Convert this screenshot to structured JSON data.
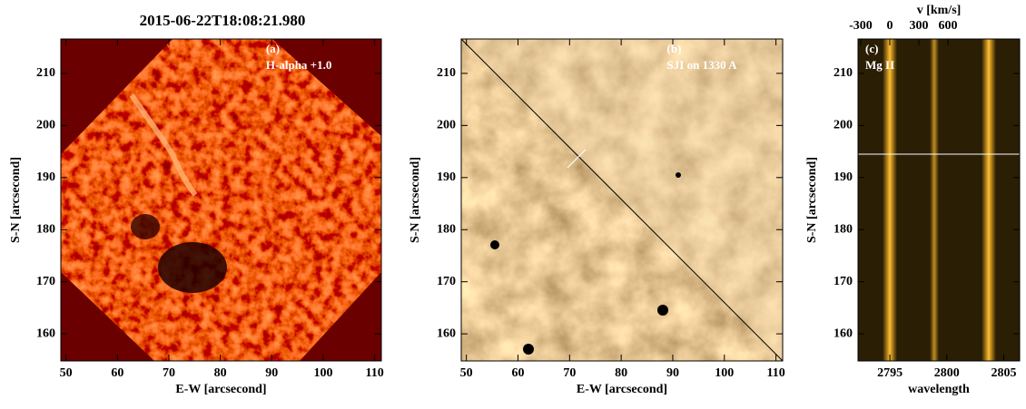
{
  "chart_data": [
    {
      "type": "image",
      "title": "2015-06-22T18:08:21.980",
      "annotations": [
        "(a)",
        "H-alpha +1.0"
      ],
      "xlabel": "E-W [arcsecond]",
      "ylabel": "S-N [arcsecond]",
      "xlim": [
        49,
        111.3
      ],
      "xticks": [
        50,
        60,
        70,
        80,
        90,
        100,
        110
      ],
      "ylim": [
        154.8,
        216.6
      ],
      "yticks": [
        160,
        170,
        180,
        190,
        200,
        210
      ]
    },
    {
      "type": "image",
      "annotations": [
        "(b)",
        "SJI on 1330 A"
      ],
      "xlabel": "E-W [arcsecond]",
      "ylabel": "S-N [arcsecond]",
      "xlim": [
        49,
        111.3
      ],
      "xticks": [
        50,
        60,
        70,
        80,
        90,
        100,
        110
      ],
      "ylim": [
        154.8,
        216.6
      ],
      "yticks": [
        160,
        170,
        180,
        190,
        200,
        210
      ]
    },
    {
      "type": "image",
      "annotations": [
        "(c)",
        "Mg II"
      ],
      "xlabel": "wavelength",
      "ylabel": "S-N [arcsecond]",
      "x2label": "v [km/s]",
      "xlim": [
        2792.2,
        2806.4
      ],
      "xticks": [
        2795,
        2800,
        2805
      ],
      "x2lim": [
        -328,
        1341
      ],
      "x2ticks": [
        -300,
        0,
        300,
        600
      ],
      "ylim": [
        154.8,
        216.6
      ],
      "yticks": [
        160,
        170,
        180,
        190,
        200,
        210
      ]
    }
  ]
}
